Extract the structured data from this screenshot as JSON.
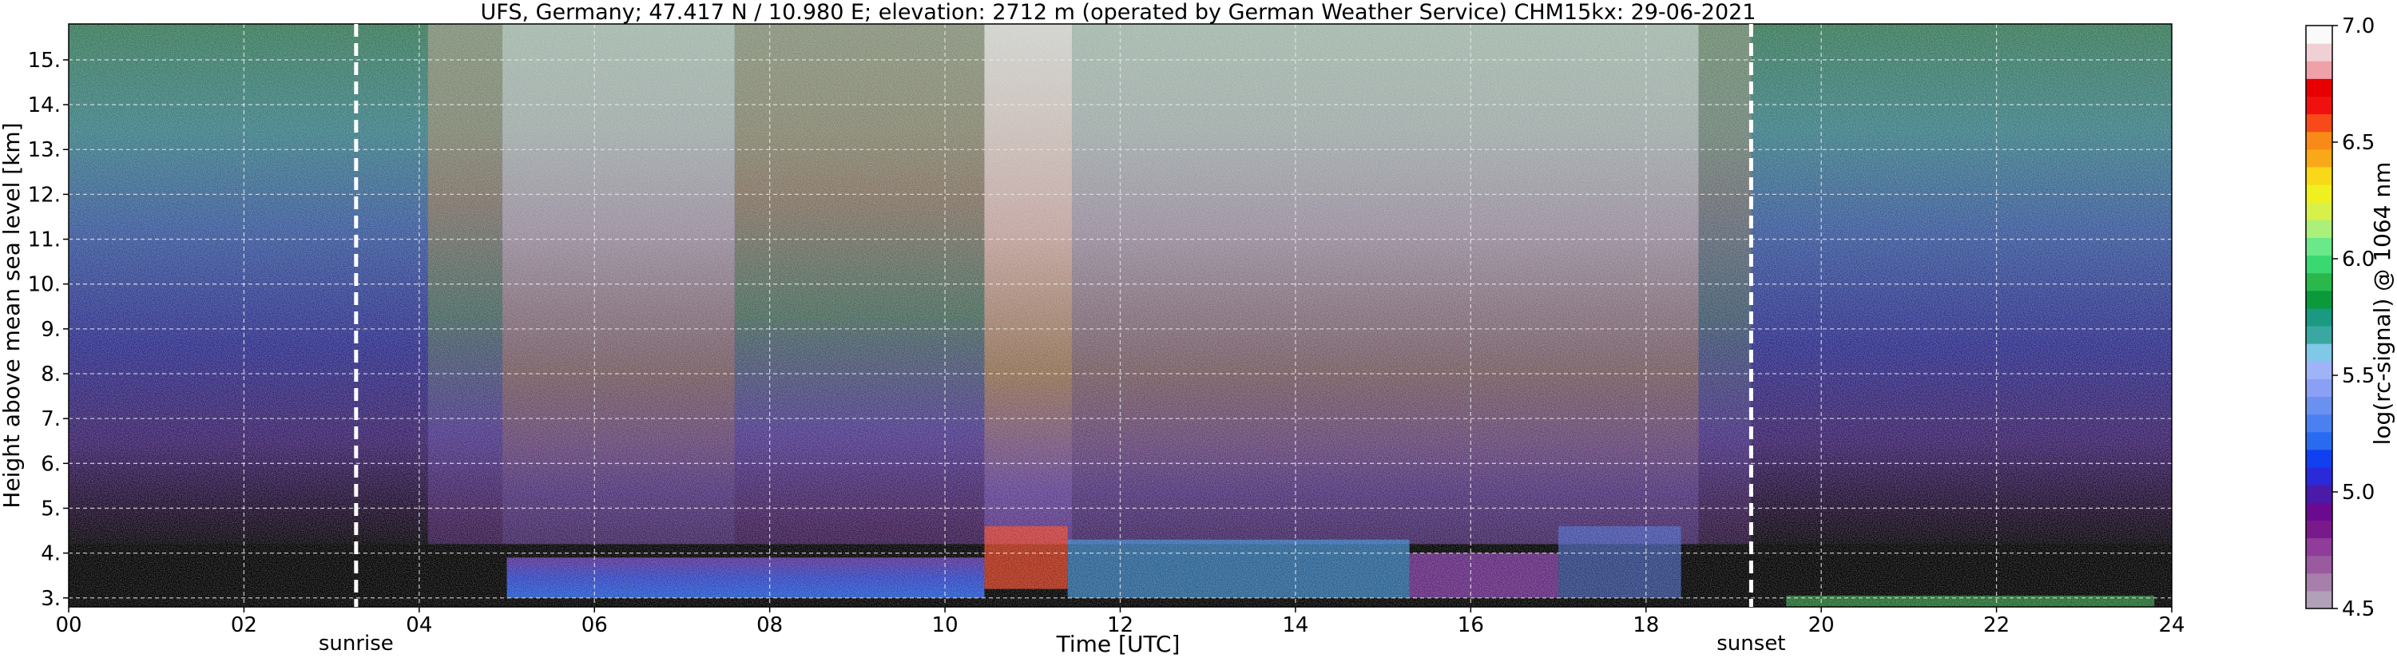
{
  "chart_data": {
    "type": "heatmap",
    "title": "UFS, Germany; 47.417 N / 10.980 E; elevation: 2712 m  (operated by German Weather Service)    CHM15kx: 29-06-2021",
    "xlabel": "Time [UTC]",
    "ylabel": "Height above mean sea level [km]",
    "xlim": [
      0,
      24
    ],
    "ylim": [
      2.8,
      15.8
    ],
    "grid": true,
    "x_ticks": [
      0,
      2,
      4,
      6,
      8,
      10,
      12,
      14,
      16,
      18,
      20,
      22,
      24
    ],
    "x_tick_labels": [
      "00",
      "02",
      "04",
      "06",
      "08",
      "10",
      "12",
      "14",
      "16",
      "18",
      "20",
      "22",
      "24"
    ],
    "y_ticks": [
      3,
      4,
      5,
      6,
      7,
      8,
      9,
      10,
      11,
      12,
      13,
      14,
      15
    ],
    "y_tick_labels": [
      "3.",
      "4.",
      "5.",
      "6.",
      "7.",
      "8.",
      "9.",
      "10.",
      "11.",
      "12.",
      "13.",
      "14.",
      "15."
    ],
    "markers": [
      {
        "label": "sunrise",
        "x": 3.28
      },
      {
        "label": "sunset",
        "x": 19.2
      }
    ],
    "colorbar": {
      "label": "log(rc-signal) @ 1064 nm",
      "range": [
        4.5,
        7.0
      ],
      "ticks": [
        4.5,
        5.0,
        5.5,
        6.0,
        6.5,
        7.0
      ],
      "tick_labels": [
        "4.5",
        "5.0",
        "5.5",
        "6.0",
        "6.5",
        "7.0"
      ],
      "colors": [
        "#b0a0b8",
        "#a680ab",
        "#9a5aa0",
        "#8f3c9a",
        "#7a1a8a",
        "#6a0a90",
        "#4a1aa8",
        "#2a2ad8",
        "#1040f0",
        "#2a6af0",
        "#4a80f0",
        "#6a90f0",
        "#8aa0f4",
        "#9fb4f8",
        "#80c8e8",
        "#3aa8a0",
        "#1a9a80",
        "#0a9a3a",
        "#2ab84a",
        "#3ad870",
        "#6ae88a",
        "#aaf07a",
        "#d8f04a",
        "#f0f020",
        "#f8d818",
        "#f8a818",
        "#f88a18",
        "#f84a18",
        "#f01010",
        "#e80000",
        "#f0a0a8",
        "#f0d0d4",
        "#fafafa"
      ]
    }
  }
}
